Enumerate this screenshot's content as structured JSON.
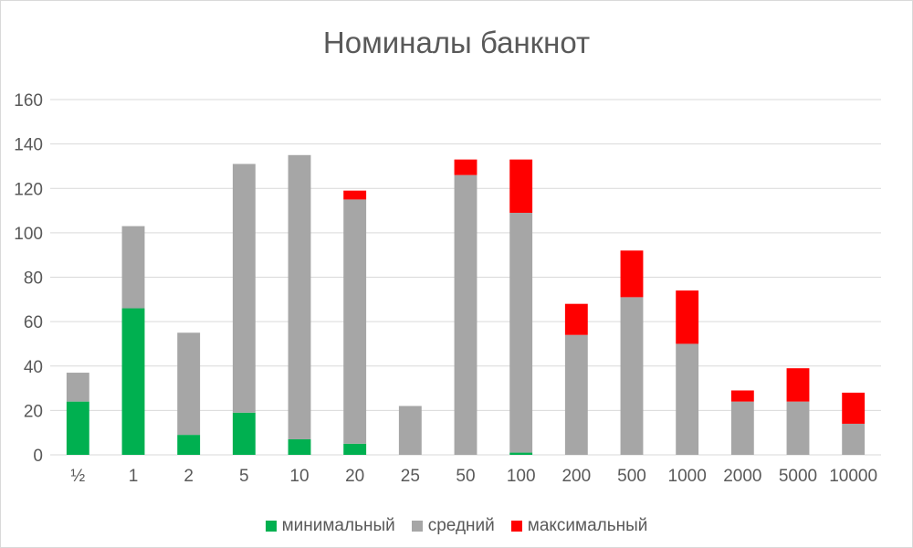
{
  "chart_data": {
    "type": "bar",
    "stacked": true,
    "title": "Номиналы банкнот",
    "xlabel": "",
    "ylabel": "",
    "categories": [
      "½",
      "1",
      "2",
      "5",
      "10",
      "20",
      "25",
      "50",
      "100",
      "200",
      "500",
      "1000",
      "2000",
      "5000",
      "10000"
    ],
    "ylim": [
      0,
      160
    ],
    "yticks": [
      0,
      20,
      40,
      60,
      80,
      100,
      120,
      140,
      160
    ],
    "grid": true,
    "legend_position": "bottom",
    "series": [
      {
        "name": "минимальный",
        "color": "#00b050",
        "values": [
          24,
          66,
          9,
          19,
          7,
          5,
          0,
          0,
          1,
          0,
          0,
          0,
          0,
          0,
          0
        ]
      },
      {
        "name": "средний",
        "color": "#a6a6a6",
        "values": [
          13,
          37,
          46,
          112,
          128,
          110,
          22,
          126,
          108,
          54,
          71,
          50,
          24,
          24,
          14
        ]
      },
      {
        "name": "максимальный",
        "color": "#ff0000",
        "values": [
          0,
          0,
          0,
          0,
          0,
          4,
          0,
          7,
          24,
          14,
          21,
          24,
          5,
          15,
          14
        ]
      }
    ]
  }
}
